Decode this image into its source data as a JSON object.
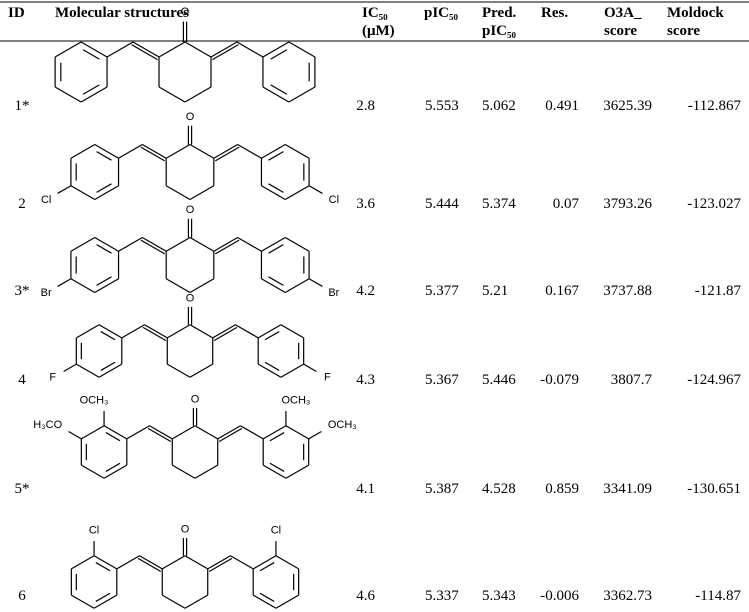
{
  "table": {
    "headers": [
      [
        "ID"
      ],
      [
        "Molecular structures"
      ],
      [
        "IC₅₀",
        "(μM)"
      ],
      [
        "pIC₅₀"
      ],
      [
        "Pred.",
        "pIC₅₀"
      ],
      [
        "Res."
      ],
      [
        "O3A_",
        "score"
      ],
      [
        "Moldock",
        "score"
      ]
    ],
    "rows": [
      {
        "id": "1*",
        "atoms": [
          "O"
        ],
        "ic50": 2.8,
        "pic50": 5.553,
        "pred": 5.062,
        "res": 0.491,
        "o3a": 3625.39,
        "moldock": -112.867
      },
      {
        "id": "2",
        "atoms": [
          "O",
          "Cl",
          "Cl"
        ],
        "ic50": 3.6,
        "pic50": 5.444,
        "pred": 5.374,
        "res": 0.07,
        "o3a": 3793.26,
        "moldock": -123.027
      },
      {
        "id": "3*",
        "atoms": [
          "O",
          "Br",
          "Br"
        ],
        "ic50": 4.2,
        "pic50": 5.377,
        "pred": 5.21,
        "res": 0.167,
        "o3a": 3737.88,
        "moldock": -121.87
      },
      {
        "id": "4",
        "atoms": [
          "O",
          "F",
          "F"
        ],
        "ic50": 4.3,
        "pic50": 5.367,
        "pred": 5.446,
        "res": -0.079,
        "o3a": 3807.7,
        "moldock": -124.967
      },
      {
        "id": "5*",
        "atoms": [
          "O",
          "OCH₃",
          "H₃CO",
          "OCH₃",
          "OCH₃"
        ],
        "ic50": 4.1,
        "pic50": 5.387,
        "pred": 4.528,
        "res": 0.859,
        "o3a": 3341.09,
        "moldock": -130.651
      },
      {
        "id": "6",
        "atoms": [
          "O",
          "Cl",
          "Cl"
        ],
        "ic50": 4.6,
        "pic50": 5.337,
        "pred": 5.343,
        "res": -0.006,
        "o3a": 3362.73,
        "moldock": -114.87
      }
    ]
  }
}
